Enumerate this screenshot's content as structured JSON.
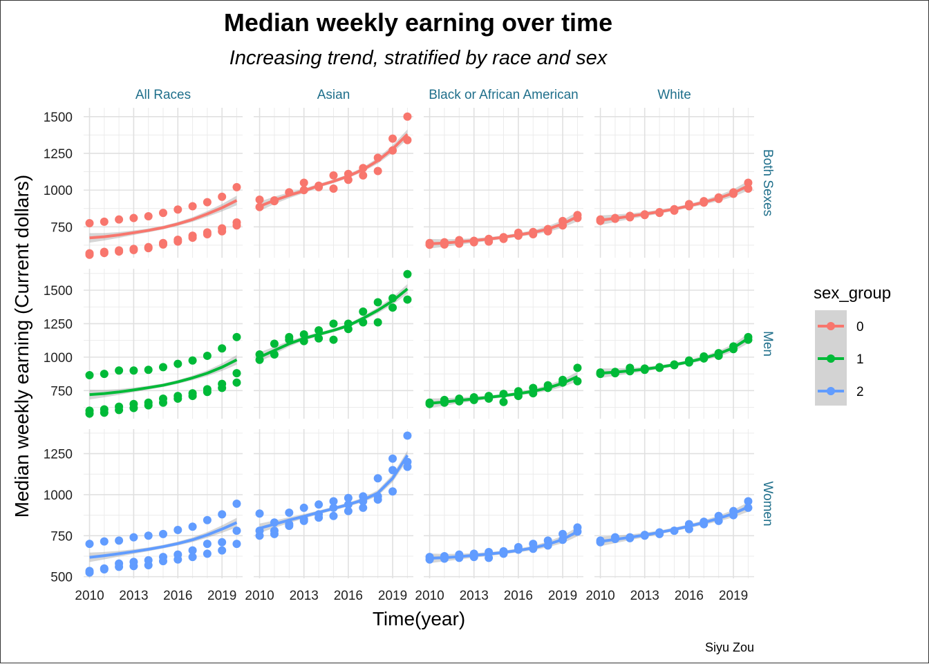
{
  "chart_data": {
    "type": "scatter",
    "title": "Median weekly earning over time",
    "subtitle": "Increasing trend, stratified by race and sex",
    "xlabel": "Time(year)",
    "ylabel": "Median weekly earning (Current dollars)",
    "caption": "Siyu Zou",
    "legend": {
      "title": "sex_group",
      "placement": "right",
      "entries": [
        {
          "label": "0",
          "color": "#F8766D"
        },
        {
          "label": "1",
          "color": "#00BA38"
        },
        {
          "label": "2",
          "color": "#619CFF"
        }
      ]
    },
    "facet_columns": [
      "All Races",
      "Asian",
      "Black or African American",
      "White"
    ],
    "facet_rows": [
      {
        "label": "Both Sexes",
        "sex_group": "0",
        "ylim": [
          540,
          1560
        ],
        "yticks": [
          750,
          1000,
          1250,
          1500
        ]
      },
      {
        "label": "Men",
        "sex_group": "1",
        "ylim": [
          540,
          1660
        ],
        "yticks": [
          750,
          1000,
          1250,
          1500
        ]
      },
      {
        "label": "Women",
        "sex_group": "2",
        "ylim": [
          490,
          1400
        ],
        "yticks": [
          500,
          750,
          1000,
          1250
        ]
      }
    ],
    "xlim": [
      2009.6,
      2020.4
    ],
    "xticks": [
      2010,
      2013,
      2016,
      2019
    ],
    "grid": true,
    "panels": [
      {
        "row": 0,
        "col": 0,
        "series": [
          {
            "x": [
              2010,
              2011,
              2012,
              2013,
              2014,
              2015,
              2016,
              2017,
              2018,
              2019,
              2020
            ],
            "y": [
              775,
              785,
              800,
              810,
              822,
              845,
              868,
              890,
              918,
              955,
              1020
            ]
          },
          {
            "x": [
              2010,
              2011,
              2012,
              2013,
              2014,
              2015,
              2016,
              2017,
              2018,
              2019,
              2020
            ],
            "y": [
              570,
              580,
              590,
              600,
              612,
              640,
              662,
              690,
              712,
              740,
              780
            ]
          },
          {
            "x": [
              2010,
              2011,
              2012,
              2013,
              2014,
              2015,
              2016,
              2017,
              2018,
              2019,
              2020
            ],
            "y": [
              560,
              572,
              582,
              592,
              605,
              630,
              650,
              676,
              700,
              720,
              760
            ]
          }
        ],
        "trend": [
          675,
          683,
          695,
          710,
          726,
          745,
          770,
          800,
          838,
          880,
          930
        ]
      },
      {
        "row": 0,
        "col": 1,
        "series": [
          {
            "x": [
              2010,
              2011,
              2012,
              2013,
              2014,
              2015,
              2016,
              2017,
              2018,
              2019,
              2020
            ],
            "y": [
              935,
              930,
              985,
              1050,
              1030,
              1100,
              1110,
              1150,
              1220,
              1350,
              1500
            ]
          },
          {
            "x": [
              2010,
              2011,
              2012,
              2013,
              2014,
              2015,
              2016,
              2017,
              2018,
              2019,
              2020
            ],
            "y": [
              885,
              925,
              985,
              1000,
              1020,
              1010,
              1070,
              1100,
              1130,
              1270,
              1340
            ]
          }
        ],
        "trend": [
          890,
          930,
          965,
          995,
          1030,
          1060,
          1095,
          1140,
          1200,
          1280,
          1380
        ]
      },
      {
        "row": 0,
        "col": 2,
        "series": [
          {
            "x": [
              2010,
              2011,
              2012,
              2013,
              2014,
              2015,
              2016,
              2017,
              2018,
              2019,
              2020
            ],
            "y": [
              640,
              645,
              660,
              655,
              668,
              680,
              710,
              715,
              735,
              790,
              830
            ]
          },
          {
            "x": [
              2010,
              2011,
              2012,
              2013,
              2014,
              2015,
              2016,
              2017,
              2018,
              2019,
              2020
            ],
            "y": [
              628,
              630,
              636,
              645,
              650,
              668,
              690,
              700,
              720,
              760,
              810
            ]
          }
        ],
        "trend": [
          635,
          640,
          648,
          657,
          667,
          680,
          695,
          712,
          735,
          770,
          820
        ]
      },
      {
        "row": 0,
        "col": 3,
        "series": [
          {
            "x": [
              2010,
              2011,
              2012,
              2013,
              2014,
              2015,
              2016,
              2017,
              2018,
              2019,
              2020
            ],
            "y": [
              800,
              810,
              825,
              835,
              850,
              870,
              905,
              925,
              950,
              985,
              1050
            ]
          },
          {
            "x": [
              2010,
              2011,
              2012,
              2013,
              2014,
              2015,
              2016,
              2017,
              2018,
              2019,
              2020
            ],
            "y": [
              790,
              805,
              815,
              830,
              845,
              860,
              890,
              915,
              940,
              975,
              1010
            ]
          }
        ],
        "trend": [
          795,
          808,
          822,
          837,
          853,
          871,
          893,
          917,
          945,
          980,
          1030
        ]
      },
      {
        "row": 1,
        "col": 0,
        "series": [
          {
            "x": [
              2010,
              2011,
              2012,
              2013,
              2014,
              2015,
              2016,
              2017,
              2018,
              2019,
              2020
            ],
            "y": [
              865,
              875,
              900,
              900,
              905,
              925,
              950,
              975,
              1010,
              1065,
              1150
            ]
          },
          {
            "x": [
              2010,
              2011,
              2012,
              2013,
              2014,
              2015,
              2016,
              2017,
              2018,
              2019,
              2020
            ],
            "y": [
              600,
              610,
              630,
              650,
              660,
              690,
              710,
              730,
              760,
              800,
              880
            ]
          },
          {
            "x": [
              2010,
              2011,
              2012,
              2013,
              2014,
              2015,
              2016,
              2017,
              2018,
              2019,
              2020
            ],
            "y": [
              578,
              585,
              605,
              620,
              640,
              660,
              690,
              710,
              740,
              770,
              810
            ]
          }
        ],
        "trend": [
          720,
          728,
          740,
          755,
          772,
          790,
          815,
          845,
          880,
          925,
          980
        ]
      },
      {
        "row": 1,
        "col": 1,
        "series": [
          {
            "x": [
              2010,
              2011,
              2012,
              2013,
              2014,
              2015,
              2016,
              2017,
              2018,
              2019,
              2020
            ],
            "y": [
              1020,
              1100,
              1150,
              1170,
              1200,
              1250,
              1250,
              1340,
              1410,
              1440,
              1620
            ]
          },
          {
            "x": [
              2010,
              2011,
              2012,
              2013,
              2014,
              2015,
              2016,
              2017,
              2018,
              2019,
              2020
            ],
            "y": [
              980,
              1020,
              1130,
              1120,
              1140,
              1130,
              1210,
              1260,
              1260,
              1370,
              1430
            ]
          }
        ],
        "trend": [
          1000,
          1050,
          1100,
          1140,
          1170,
          1200,
          1235,
          1290,
          1350,
          1420,
          1510
        ]
      },
      {
        "row": 1,
        "col": 2,
        "series": [
          {
            "x": [
              2010,
              2011,
              2012,
              2013,
              2014,
              2015,
              2016,
              2017,
              2018,
              2019,
              2020
            ],
            "y": [
              660,
              680,
              690,
              700,
              710,
              725,
              745,
              770,
              790,
              830,
              920
            ]
          },
          {
            "x": [
              2010,
              2011,
              2012,
              2013,
              2014,
              2015,
              2016,
              2017,
              2018,
              2019,
              2020
            ],
            "y": [
              650,
              660,
              670,
              680,
              690,
              665,
              710,
              730,
              770,
              810,
              820
            ]
          }
        ],
        "trend": [
          655,
          665,
          677,
          688,
          700,
          712,
          727,
          745,
          770,
          805,
          855
        ]
      },
      {
        "row": 1,
        "col": 3,
        "series": [
          {
            "x": [
              2010,
              2011,
              2012,
              2013,
              2014,
              2015,
              2016,
              2017,
              2018,
              2019,
              2020
            ],
            "y": [
              885,
              890,
              920,
              915,
              925,
              945,
              975,
              1005,
              1030,
              1080,
              1150
            ]
          },
          {
            "x": [
              2010,
              2011,
              2012,
              2013,
              2014,
              2015,
              2016,
              2017,
              2018,
              2019,
              2020
            ],
            "y": [
              875,
              880,
              895,
              905,
              920,
              940,
              960,
              990,
              1010,
              1060,
              1130
            ]
          }
        ],
        "trend": [
          880,
          888,
          898,
          910,
          925,
          943,
          965,
          992,
          1025,
          1070,
          1140
        ]
      },
      {
        "row": 2,
        "col": 0,
        "series": [
          {
            "x": [
              2010,
              2011,
              2012,
              2013,
              2014,
              2015,
              2016,
              2017,
              2018,
              2019,
              2020
            ],
            "y": [
              700,
              715,
              720,
              740,
              750,
              760,
              785,
              805,
              845,
              880,
              945
            ]
          },
          {
            "x": [
              2010,
              2011,
              2012,
              2013,
              2014,
              2015,
              2016,
              2017,
              2018,
              2019,
              2020
            ],
            "y": [
              535,
              550,
              580,
              590,
              600,
              620,
              635,
              660,
              700,
              710,
              780
            ]
          },
          {
            "x": [
              2010,
              2011,
              2012,
              2013,
              2014,
              2015,
              2016,
              2017,
              2018,
              2019,
              2020
            ],
            "y": [
              525,
              545,
              560,
              565,
              570,
              595,
              605,
              620,
              640,
              660,
              700
            ]
          }
        ],
        "trend": [
          618,
          628,
          640,
          653,
          667,
          683,
          702,
          725,
          755,
          790,
          830
        ]
      },
      {
        "row": 2,
        "col": 1,
        "series": [
          {
            "x": [
              2010,
              2011,
              2012,
              2013,
              2014,
              2015,
              2016,
              2017,
              2018,
              2019,
              2020
            ],
            "y": [
              885,
              830,
              890,
              920,
              940,
              960,
              980,
              990,
              1100,
              1220,
              1360
            ]
          },
          {
            "x": [
              2010,
              2011,
              2012,
              2013,
              2014,
              2015,
              2016,
              2017,
              2018,
              2019,
              2020
            ],
            "y": [
              780,
              780,
              820,
              850,
              880,
              920,
              940,
              960,
              990,
              1150,
              1200
            ]
          },
          {
            "x": [
              2010,
              2011,
              2012,
              2013,
              2014,
              2015,
              2016,
              2017,
              2018,
              2019,
              2020
            ],
            "y": [
              750,
              760,
              810,
              840,
              860,
              870,
              900,
              920,
              970,
              1020,
              1170
            ]
          }
        ],
        "trend": [
          795,
          820,
          845,
          868,
          892,
          915,
          940,
          968,
          1010,
          1100,
          1240
        ]
      },
      {
        "row": 2,
        "col": 2,
        "series": [
          {
            "x": [
              2010,
              2011,
              2012,
              2013,
              2014,
              2015,
              2016,
              2017,
              2018,
              2019,
              2020
            ],
            "y": [
              620,
              625,
              635,
              640,
              650,
              655,
              680,
              700,
              720,
              760,
              800
            ]
          },
          {
            "x": [
              2010,
              2011,
              2012,
              2013,
              2014,
              2015,
              2016,
              2017,
              2018,
              2019,
              2020
            ],
            "y": [
              605,
              610,
              615,
              620,
              615,
              640,
              665,
              670,
              690,
              725,
              775
            ]
          }
        ],
        "trend": [
          612,
          616,
          622,
          630,
          638,
          648,
          660,
          675,
          697,
          727,
          775
        ]
      },
      {
        "row": 2,
        "col": 3,
        "series": [
          {
            "x": [
              2010,
              2011,
              2012,
              2013,
              2014,
              2015,
              2016,
              2017,
              2018,
              2019,
              2020
            ],
            "y": [
              720,
              740,
              735,
              755,
              770,
              780,
              820,
              835,
              870,
              900,
              960
            ]
          },
          {
            "x": [
              2010,
              2011,
              2012,
              2013,
              2014,
              2015,
              2016,
              2017,
              2018,
              2019,
              2020
            ],
            "y": [
              710,
              730,
              740,
              750,
              760,
              780,
              790,
              820,
              840,
              875,
              920
            ]
          }
        ],
        "trend": [
          715,
          727,
          740,
          754,
          770,
          788,
          808,
          830,
          855,
          885,
          925
        ]
      }
    ]
  }
}
